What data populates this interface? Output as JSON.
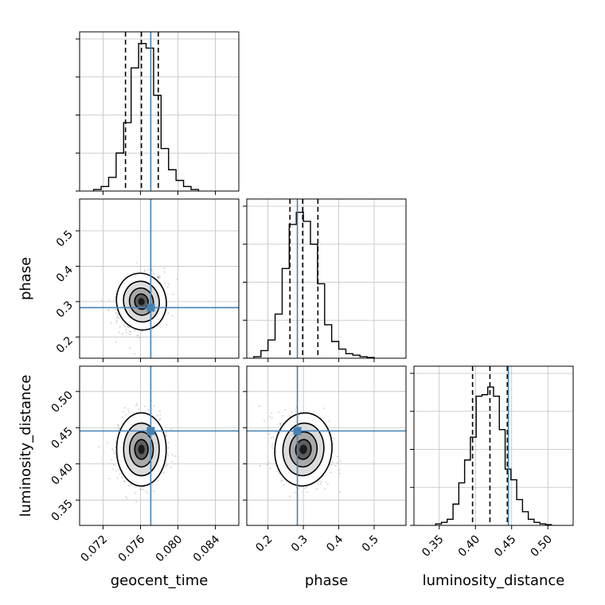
{
  "chart_data": {
    "type": "corner",
    "grid": true,
    "colors": {
      "truth": "#4682b4",
      "hist": "#000000",
      "quantile": "#000000",
      "scatter": "#9a9a9a",
      "grid": "#c0c0c0"
    },
    "params": [
      {
        "name": "geocent_time",
        "xlim": [
          0.0695,
          0.0865
        ],
        "ticks": [
          0.072,
          0.076,
          0.08,
          0.084
        ],
        "tick_labels": [
          "0.072",
          "0.076",
          "0.080",
          "0.084"
        ],
        "truth": 0.0771,
        "quantiles": [
          0.0744,
          0.0761,
          0.0779
        ],
        "mean": 0.0761,
        "sd": 0.00115
      },
      {
        "name": "phase",
        "xlim": [
          0.14,
          0.59
        ],
        "ticks": [
          0.2,
          0.3,
          0.4,
          0.5
        ],
        "tick_labels": [
          "0.2",
          "0.3",
          "0.4",
          "0.5"
        ],
        "truth": 0.283,
        "quantiles": [
          0.262,
          0.298,
          0.341
        ],
        "mean": 0.3,
        "sd": 0.035
      },
      {
        "name": "luminosity_distance",
        "xlim": [
          0.315,
          0.535
        ],
        "ticks": [
          0.35,
          0.4,
          0.45,
          0.5
        ],
        "tick_labels": [
          "0.35",
          "0.40",
          "0.45",
          "0.50"
        ],
        "truth": 0.4455,
        "quantiles": [
          0.396,
          0.42,
          0.444
        ],
        "mean": 0.42,
        "sd": 0.022
      }
    ],
    "histograms": [
      {
        "param": "geocent_time",
        "bin_edges": [
          0.071,
          0.0718,
          0.0726,
          0.0734,
          0.0742,
          0.075,
          0.0758,
          0.0766,
          0.0774,
          0.0782,
          0.079,
          0.0798,
          0.0806,
          0.0814,
          0.0822
        ],
        "counts": [
          0.01,
          0.03,
          0.09,
          0.25,
          0.45,
          0.81,
          0.97,
          0.94,
          0.63,
          0.28,
          0.14,
          0.07,
          0.03,
          0.01
        ]
      },
      {
        "param": "phase",
        "bin_edges": [
          0.16,
          0.18,
          0.2,
          0.22,
          0.24,
          0.26,
          0.28,
          0.3,
          0.32,
          0.34,
          0.36,
          0.38,
          0.4,
          0.42,
          0.44,
          0.46,
          0.48,
          0.5
        ],
        "counts": [
          0.01,
          0.05,
          0.12,
          0.29,
          0.59,
          0.88,
          0.96,
          0.9,
          0.75,
          0.49,
          0.22,
          0.11,
          0.06,
          0.03,
          0.02,
          0.01,
          0.005
        ]
      },
      {
        "param": "luminosity_distance",
        "bin_edges": [
          0.345,
          0.353,
          0.361,
          0.369,
          0.377,
          0.385,
          0.393,
          0.401,
          0.409,
          0.417,
          0.425,
          0.433,
          0.441,
          0.449,
          0.457,
          0.465,
          0.473,
          0.481,
          0.489,
          0.497,
          0.505
        ],
        "counts": [
          0.01,
          0.02,
          0.04,
          0.14,
          0.28,
          0.43,
          0.58,
          0.85,
          0.86,
          0.91,
          0.85,
          0.63,
          0.37,
          0.3,
          0.17,
          0.09,
          0.04,
          0.02,
          0.01,
          0.005
        ]
      }
    ],
    "pairs": [
      {
        "x": "geocent_time",
        "y": "phase",
        "rho": 0.3
      },
      {
        "x": "geocent_time",
        "y": "luminosity_distance",
        "rho": 0.0
      },
      {
        "x": "phase",
        "y": "luminosity_distance",
        "rho": -0.15
      }
    ]
  }
}
